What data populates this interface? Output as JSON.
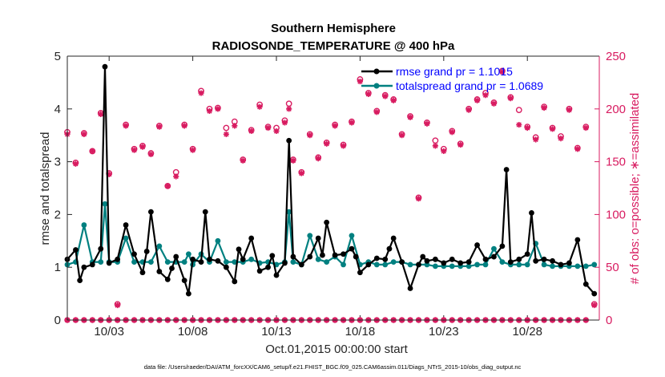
{
  "chart_data": {
    "type": "line",
    "title_line1": "Southern Hemisphere",
    "title_line2": "RADIOSONDE_TEMPERATURE @ 400 hPa",
    "xlabel": "Oct.01,2015 00:00:00 start",
    "ylabel_left": "rmse and totalspread",
    "ylabel_right": "# of obs: o=possible; ∗=assimilated",
    "footnote": "data file: /Users/raeder/DAI/ATM_forcXX/CAM6_setup/f.e21.FHIST_BGC.f09_025.CAM6assim.011/Diags_NTrS_2015-10/obs_diag_output.nc",
    "xlim": [
      0.5,
      32.3
    ],
    "ylim_left": [
      0,
      5
    ],
    "ylim_right": [
      0,
      250
    ],
    "x_ticks": [
      3,
      8,
      13,
      18,
      23,
      28
    ],
    "x_tick_labels": [
      "10/03",
      "10/08",
      "10/13",
      "10/18",
      "10/23",
      "10/28"
    ],
    "y_left_ticks": [
      "0",
      "1",
      "2",
      "3",
      "4",
      "5"
    ],
    "y_right_ticks": [
      "0",
      "50",
      "100",
      "150",
      "200",
      "250"
    ],
    "legend": [
      {
        "label": "rmse grand pr = 1.1015",
        "color": "#000000"
      },
      {
        "label": "totalspread grand pr = 1.0689",
        "color": "#008080"
      }
    ],
    "series": [
      {
        "name": "rmse",
        "color": "#000000",
        "x": [
          0.5,
          1.0,
          1.25,
          1.5,
          2.0,
          2.5,
          2.75,
          3.0,
          3.5,
          4.0,
          4.5,
          5.0,
          5.25,
          5.5,
          6.0,
          6.5,
          6.75,
          7.0,
          7.5,
          7.75,
          8.0,
          8.5,
          8.75,
          9.0,
          9.5,
          10.0,
          10.5,
          10.75,
          11.0,
          11.5,
          12.0,
          12.5,
          12.75,
          13.0,
          13.5,
          13.75,
          14.0,
          14.5,
          15.0,
          15.5,
          15.75,
          16.0,
          16.5,
          17.0,
          17.5,
          17.75,
          18.0,
          18.5,
          19.0,
          19.5,
          19.75,
          20.0,
          20.5,
          21.0,
          21.5,
          21.75,
          22.0,
          22.5,
          23.0,
          23.5,
          24.0,
          24.5,
          25.0,
          25.5,
          26.0,
          26.5,
          26.75,
          27.0,
          27.5,
          28.0,
          28.25,
          28.5,
          29.0,
          29.5,
          30.0,
          30.5,
          31.0,
          31.5,
          32.0
        ],
        "values": [
          1.15,
          1.33,
          0.75,
          1.0,
          1.05,
          1.35,
          4.8,
          1.08,
          1.15,
          1.8,
          1.25,
          0.9,
          1.3,
          2.05,
          0.92,
          0.77,
          0.98,
          1.2,
          0.75,
          0.5,
          1.15,
          1.1,
          2.05,
          1.15,
          1.12,
          1.0,
          0.73,
          1.34,
          1.15,
          1.55,
          0.93,
          1.0,
          1.22,
          0.85,
          1.08,
          3.4,
          1.2,
          1.05,
          1.2,
          1.55,
          1.23,
          1.85,
          1.23,
          1.25,
          1.35,
          1.2,
          0.9,
          1.05,
          1.17,
          1.15,
          1.35,
          1.55,
          1.1,
          0.6,
          1.05,
          1.2,
          1.12,
          1.15,
          1.08,
          1.15,
          1.08,
          1.1,
          1.42,
          1.15,
          1.2,
          1.4,
          2.85,
          1.1,
          1.15,
          1.25,
          2.03,
          1.12,
          1.15,
          1.12,
          1.05,
          1.08,
          1.52,
          0.68,
          0.5
        ]
      },
      {
        "name": "totalspread",
        "color": "#008080",
        "x": [
          0.5,
          1.0,
          1.5,
          2.0,
          2.5,
          2.75,
          3.0,
          3.5,
          4.0,
          4.5,
          5.0,
          5.5,
          6.0,
          6.5,
          7.0,
          7.5,
          7.75,
          8.0,
          8.5,
          9.0,
          9.5,
          10.0,
          10.5,
          11.0,
          11.5,
          12.0,
          12.5,
          13.0,
          13.5,
          13.75,
          14.0,
          14.5,
          15.0,
          15.5,
          16.0,
          16.5,
          17.0,
          17.5,
          18.0,
          18.5,
          19.0,
          19.5,
          20.0,
          20.5,
          21.0,
          21.5,
          22.0,
          22.5,
          23.0,
          23.5,
          24.0,
          24.5,
          25.0,
          25.5,
          26.0,
          26.5,
          27.0,
          27.5,
          28.0,
          28.5,
          29.0,
          29.5,
          30.0,
          30.5,
          31.0,
          31.5,
          32.0
        ],
        "values": [
          1.05,
          1.1,
          1.8,
          1.1,
          1.1,
          2.2,
          1.1,
          1.1,
          1.55,
          1.1,
          1.1,
          1.1,
          1.4,
          1.1,
          1.1,
          1.1,
          1.25,
          1.05,
          1.25,
          1.1,
          1.5,
          1.1,
          1.1,
          1.1,
          1.15,
          1.08,
          1.1,
          1.05,
          1.1,
          2.05,
          1.1,
          1.05,
          1.6,
          1.15,
          1.1,
          1.2,
          1.05,
          1.6,
          1.05,
          1.1,
          1.05,
          1.05,
          1.1,
          1.1,
          1.05,
          1.05,
          1.05,
          1.02,
          1.02,
          1.02,
          1.02,
          1.02,
          1.05,
          1.05,
          1.35,
          1.1,
          1.05,
          1.05,
          1.05,
          1.45,
          1.05,
          1.02,
          1.02,
          1.02,
          1.02,
          1.02,
          1.05
        ]
      }
    ],
    "obs_possible": {
      "color": "#d81b60",
      "x": [
        0.5,
        1.0,
        1.5,
        2.0,
        2.5,
        3.0,
        3.5,
        4.0,
        4.5,
        5.0,
        5.5,
        6.0,
        6.5,
        7.0,
        7.5,
        8.0,
        8.5,
        9.0,
        9.5,
        10.0,
        10.5,
        11.0,
        11.5,
        12.0,
        12.5,
        13.0,
        13.5,
        13.75,
        14.0,
        14.5,
        15.0,
        15.5,
        16.0,
        16.5,
        17.0,
        17.5,
        18.0,
        18.5,
        19.0,
        19.5,
        20.0,
        20.5,
        21.0,
        21.5,
        22.0,
        22.5,
        23.0,
        23.5,
        24.0,
        24.5,
        25.0,
        25.5,
        26.0,
        26.5,
        27.0,
        27.5,
        28.0,
        28.5,
        29.0,
        29.5,
        30.0,
        30.5,
        31.0,
        31.5,
        32.0
      ],
      "values": [
        178,
        149,
        177,
        160,
        196,
        139,
        15,
        185,
        162,
        165,
        158,
        184,
        127,
        140,
        185,
        162,
        217,
        200,
        201,
        182,
        188,
        152,
        180,
        204,
        183,
        182,
        189,
        205,
        152,
        140,
        176,
        154,
        168,
        185,
        166,
        188,
        228,
        215,
        198,
        213,
        209,
        176,
        193,
        116,
        187,
        170,
        162,
        179,
        167,
        200,
        209,
        215,
        206,
        236,
        211,
        199,
        183,
        173,
        202,
        182,
        174,
        200,
        163,
        183,
        15
      ]
    },
    "obs_assimilated": {
      "color": "#d81b60",
      "x": [
        0.5,
        1.0,
        1.5,
        2.0,
        2.5,
        3.0,
        3.5,
        4.0,
        4.5,
        5.0,
        5.5,
        6.0,
        6.5,
        7.0,
        7.5,
        8.0,
        8.5,
        9.0,
        9.5,
        10.0,
        10.5,
        11.0,
        11.5,
        12.0,
        12.5,
        13.0,
        13.5,
        13.75,
        14.0,
        14.5,
        15.0,
        15.5,
        16.0,
        16.5,
        17.0,
        17.5,
        18.0,
        18.5,
        19.0,
        19.5,
        20.0,
        20.5,
        21.0,
        21.5,
        22.0,
        22.5,
        23.0,
        23.5,
        24.0,
        24.5,
        25.0,
        25.5,
        26.0,
        26.5,
        27.0,
        27.5,
        28.0,
        28.5,
        29.0,
        29.5,
        30.0,
        30.5,
        31.0,
        31.5,
        32.0
      ],
      "values": [
        176,
        148,
        176,
        160,
        195,
        138,
        14,
        184,
        161,
        164,
        157,
        183,
        127,
        136,
        184,
        161,
        215,
        198,
        200,
        176,
        184,
        151,
        179,
        202,
        182,
        179,
        187,
        200,
        151,
        139,
        175,
        153,
        167,
        184,
        165,
        187,
        226,
        214,
        197,
        212,
        208,
        175,
        192,
        115,
        186,
        165,
        160,
        178,
        166,
        199,
        208,
        213,
        205,
        235,
        210,
        185,
        182,
        171,
        201,
        181,
        172,
        199,
        162,
        182,
        14
      ]
    },
    "obs_zero_markers_x": [
      0.5,
      1.0,
      1.5,
      2.0,
      2.5,
      3.0,
      3.5,
      4.0,
      4.5,
      5.0,
      5.5,
      6.0,
      6.5,
      7.0,
      7.5,
      8.0,
      8.5,
      9.0,
      9.5,
      10.0,
      10.5,
      11.0,
      11.5,
      12.0,
      12.5,
      13.0,
      13.5,
      14.0,
      14.5,
      15.0,
      15.5,
      16.0,
      16.5,
      17.0,
      17.5,
      18.0,
      18.5,
      19.0,
      19.5,
      20.0,
      20.5,
      21.0,
      21.5,
      22.0,
      22.5,
      23.0,
      23.5,
      24.0,
      24.5,
      25.0,
      25.5,
      26.0,
      26.5,
      27.0,
      27.5,
      28.0,
      28.5,
      29.0,
      29.5,
      30.0,
      30.5,
      31.0,
      31.5
    ]
  }
}
